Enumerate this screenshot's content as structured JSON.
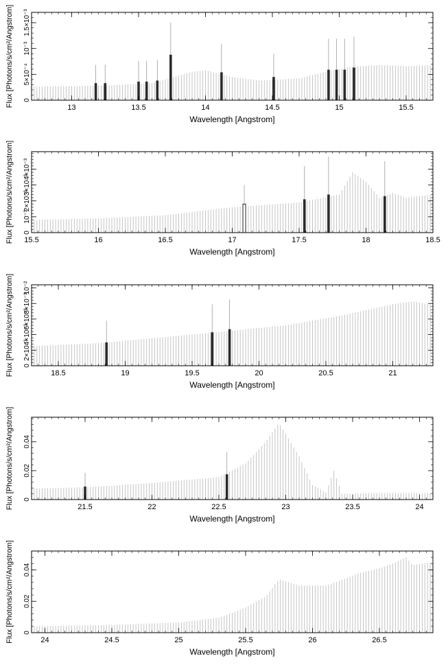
{
  "chart_data": [
    {
      "type": "bar",
      "xlabel": "Wavelength [Angstrom]",
      "ylabel": "Flux [Photons/s/cm²/Angstrom]",
      "xlim": [
        12.7,
        15.7
      ],
      "ylim": [
        0,
        0.0017
      ],
      "x_ticks": [
        13,
        13.5,
        14,
        14.5,
        15,
        15.5
      ],
      "x_tick_labels": [
        "13",
        "13.5",
        "14",
        "14.5",
        "15",
        "15.5"
      ],
      "y_ticks": [
        0,
        0.0005,
        0.001,
        0.0015
      ],
      "y_tick_labels": [
        "0",
        "5×10⁻⁴",
        "10⁻³",
        "1.5×10⁻³"
      ],
      "continuum": [
        [
          12.7,
          0.00026
        ],
        [
          13.0,
          0.00027
        ],
        [
          13.3,
          0.00029
        ],
        [
          13.6,
          0.00033
        ],
        [
          13.9,
          0.00055
        ],
        [
          14.0,
          0.00058
        ],
        [
          14.2,
          0.00045
        ],
        [
          14.4,
          0.00038
        ],
        [
          14.7,
          0.00042
        ],
        [
          14.9,
          0.00055
        ],
        [
          15.1,
          0.00065
        ],
        [
          15.3,
          0.00068
        ],
        [
          15.5,
          0.00066
        ],
        [
          15.7,
          0.00068
        ]
      ],
      "highlights": [
        {
          "x": 13.18,
          "y": 0.00033,
          "err": 0.00035
        },
        {
          "x": 13.25,
          "y": 0.00033,
          "err": 0.00036
        },
        {
          "x": 13.5,
          "y": 0.00036,
          "err": 0.0004
        },
        {
          "x": 13.56,
          "y": 0.00036,
          "err": 0.0004
        },
        {
          "x": 13.64,
          "y": 0.00038,
          "err": 0.0004
        },
        {
          "x": 13.74,
          "y": 0.00088,
          "err": 0.00062
        },
        {
          "x": 14.12,
          "y": 0.00054,
          "err": 0.00055
        },
        {
          "x": 14.51,
          "y": 0.00045,
          "err": 0.00045
        },
        {
          "x": 14.92,
          "y": 0.00059,
          "err": 0.0006
        },
        {
          "x": 14.98,
          "y": 0.00059,
          "err": 0.0006
        },
        {
          "x": 15.04,
          "y": 0.00059,
          "err": 0.0006
        },
        {
          "x": 15.11,
          "y": 0.00063,
          "err": 0.0006
        }
      ]
    },
    {
      "type": "bar",
      "xlabel": "Wavelength [Angstrom]",
      "ylabel": "Flux [Photons/s/cm²/Angstrom]",
      "xlim": [
        15.5,
        18.5
      ],
      "ylim": [
        0,
        0.0051
      ],
      "x_ticks": [
        15.5,
        16,
        16.5,
        17,
        17.5,
        18,
        18.5
      ],
      "x_tick_labels": [
        "15.5",
        "16",
        "16.5",
        "17",
        "17.5",
        "18",
        "18.5"
      ],
      "y_ticks": [
        0,
        0.001,
        0.002,
        0.003,
        0.004
      ],
      "y_tick_labels": [
        "0",
        "10⁻³",
        "2×10⁻³",
        "3×10⁻³",
        "4×10⁻³"
      ],
      "continuum": [
        [
          15.5,
          0.0008
        ],
        [
          16.0,
          0.0009
        ],
        [
          16.5,
          0.0011
        ],
        [
          17.0,
          0.0016
        ],
        [
          17.5,
          0.0019
        ],
        [
          17.8,
          0.0024
        ],
        [
          17.9,
          0.0038
        ],
        [
          18.0,
          0.0032
        ],
        [
          18.1,
          0.0022
        ],
        [
          18.2,
          0.0025
        ],
        [
          18.3,
          0.0022
        ],
        [
          18.5,
          0.0024
        ]
      ],
      "highlights": [
        {
          "x": 17.09,
          "y": 0.0018,
          "err": 0.0012,
          "hollow": true
        },
        {
          "x": 17.54,
          "y": 0.0021,
          "err": 0.0021
        },
        {
          "x": 17.72,
          "y": 0.0024,
          "err": 0.0024
        },
        {
          "x": 18.14,
          "y": 0.0023,
          "err": 0.0022
        }
      ]
    },
    {
      "type": "bar",
      "xlabel": "Wavelength [Angstrom]",
      "ylabel": "Flux [Photons/s/cm²/Angstrom]",
      "xlim": [
        18.3,
        21.3
      ],
      "ylim": [
        0,
        0.0104
      ],
      "x_ticks": [
        18.5,
        19,
        19.5,
        20,
        20.5,
        21
      ],
      "x_tick_labels": [
        "18.5",
        "19",
        "19.5",
        "20",
        "20.5",
        "21"
      ],
      "y_ticks": [
        0,
        0.002,
        0.004,
        0.006,
        0.008,
        0.01
      ],
      "y_tick_labels": [
        "0",
        "2×10⁻³",
        "4×10⁻³",
        "6×10⁻³",
        "8×10⁻³",
        "10⁻²"
      ],
      "continuum": [
        [
          18.3,
          0.0025
        ],
        [
          18.8,
          0.0029
        ],
        [
          19.3,
          0.0037
        ],
        [
          19.8,
          0.0045
        ],
        [
          20.2,
          0.0052
        ],
        [
          20.6,
          0.0064
        ],
        [
          21.0,
          0.0079
        ],
        [
          21.15,
          0.0083
        ],
        [
          21.3,
          0.0078
        ]
      ],
      "highlights": [
        {
          "x": 18.86,
          "y": 0.003,
          "err": 0.0028
        },
        {
          "x": 19.65,
          "y": 0.0043,
          "err": 0.0036
        },
        {
          "x": 19.78,
          "y": 0.0047,
          "err": 0.0038
        }
      ]
    },
    {
      "type": "bar",
      "xlabel": "Wavelength [Angstrom]",
      "ylabel": "Flux [Photons/s/cm²/Angstrom]",
      "xlim": [
        21.1,
        24.1
      ],
      "ylim": [
        0,
        0.057
      ],
      "x_ticks": [
        21.5,
        22,
        22.5,
        23,
        23.5,
        24
      ],
      "x_tick_labels": [
        "21.5",
        "22",
        "22.5",
        "23",
        "23.5",
        "24"
      ],
      "y_ticks": [
        0,
        0.02,
        0.04
      ],
      "y_tick_labels": [
        "0",
        "0.02",
        "0.04"
      ],
      "continuum": [
        [
          21.1,
          0.0075
        ],
        [
          21.5,
          0.0085
        ],
        [
          22.0,
          0.0115
        ],
        [
          22.5,
          0.0155
        ],
        [
          22.7,
          0.025
        ],
        [
          22.85,
          0.04
        ],
        [
          22.95,
          0.053
        ],
        [
          23.1,
          0.03
        ],
        [
          23.2,
          0.01
        ],
        [
          23.3,
          0.005
        ],
        [
          23.36,
          0.02
        ],
        [
          23.42,
          0.004
        ],
        [
          23.6,
          0.0045
        ],
        [
          24.1,
          0.0045
        ]
      ],
      "highlights": [
        {
          "x": 21.5,
          "y": 0.009,
          "err": 0.0095
        },
        {
          "x": 22.56,
          "y": 0.0175,
          "err": 0.0155
        }
      ]
    },
    {
      "type": "bar",
      "xlabel": "Wavelength [Angstrom]",
      "ylabel": "Flux [Photons/s/cm²/Angstrom]",
      "xlim": [
        23.9,
        26.9
      ],
      "ylim": [
        0,
        0.052
      ],
      "x_ticks": [
        24,
        24.5,
        25,
        25.5,
        26,
        26.5
      ],
      "x_tick_labels": [
        "24",
        "24.5",
        "25",
        "25.5",
        "26",
        "26.5"
      ],
      "y_ticks": [
        0,
        0.02,
        0.04
      ],
      "y_tick_labels": [
        "0",
        "0.02",
        "0.04"
      ],
      "continuum": [
        [
          23.9,
          0.004
        ],
        [
          24.5,
          0.005
        ],
        [
          25.0,
          0.0065
        ],
        [
          25.3,
          0.0095
        ],
        [
          25.5,
          0.016
        ],
        [
          25.65,
          0.023
        ],
        [
          25.75,
          0.034
        ],
        [
          25.9,
          0.03
        ],
        [
          26.1,
          0.03
        ],
        [
          26.2,
          0.033
        ],
        [
          26.35,
          0.038
        ],
        [
          26.5,
          0.041
        ],
        [
          26.6,
          0.044
        ],
        [
          26.7,
          0.048
        ],
        [
          26.75,
          0.043
        ],
        [
          26.9,
          0.045
        ]
      ],
      "highlights": []
    }
  ]
}
